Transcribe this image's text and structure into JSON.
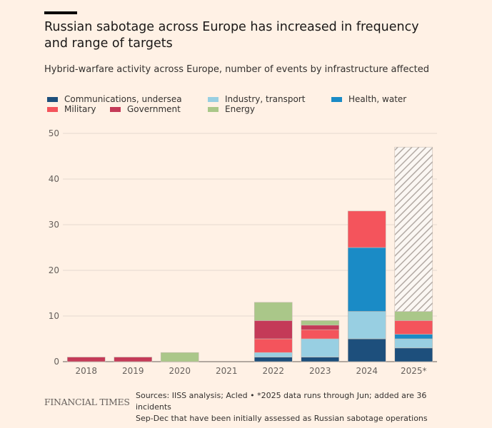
{
  "chart_data": {
    "type": "bar",
    "stacked": true,
    "title": "Russian sabotage across Europe has increased in frequency and range of targets",
    "subtitle": "Hybrid-warfare activity across Europe, number of events by infrastructure affected",
    "categories": [
      "2018",
      "2019",
      "2020",
      "2021",
      "2022",
      "2023",
      "2024",
      "2025*"
    ],
    "ylim": [
      0,
      50
    ],
    "yticks": [
      0,
      10,
      20,
      30,
      40,
      50
    ],
    "grid": true,
    "legend_position": "top",
    "series": [
      {
        "name": "Communications, undersea",
        "color": "#1d4f7c",
        "values": [
          0,
          0,
          0,
          0,
          1,
          1,
          5,
          3
        ]
      },
      {
        "name": "Industry, transport",
        "color": "#98cfe2",
        "values": [
          0,
          0,
          0,
          0,
          1,
          4,
          6,
          2
        ]
      },
      {
        "name": "Health, water",
        "color": "#1a8bc6",
        "values": [
          0,
          0,
          0,
          0,
          0,
          0,
          14,
          1
        ]
      },
      {
        "name": "Military",
        "color": "#f4545c",
        "values": [
          0,
          0,
          0,
          0,
          3,
          2,
          8,
          3
        ]
      },
      {
        "name": "Government",
        "color": "#c43a58",
        "values": [
          1,
          1,
          0,
          0,
          4,
          1,
          0,
          0
        ]
      },
      {
        "name": "Energy",
        "color": "#aac789",
        "values": [
          0,
          0,
          2,
          0,
          4,
          1,
          0,
          2
        ]
      },
      {
        "color": "hatched",
        "values": [
          0,
          0,
          0,
          0,
          0,
          0,
          0,
          36
        ]
      }
    ],
    "legend_order": [
      0,
      1,
      2,
      3,
      4,
      5
    ]
  },
  "footer": {
    "brand": "FINANCIAL TIMES",
    "source_line1": "Sources: IISS analysis; Acled • *2025 data runs through Jun; added are 36 incidents",
    "source_line2": "Sep-Dec that have been initially assessed as Russian sabotage operations"
  }
}
